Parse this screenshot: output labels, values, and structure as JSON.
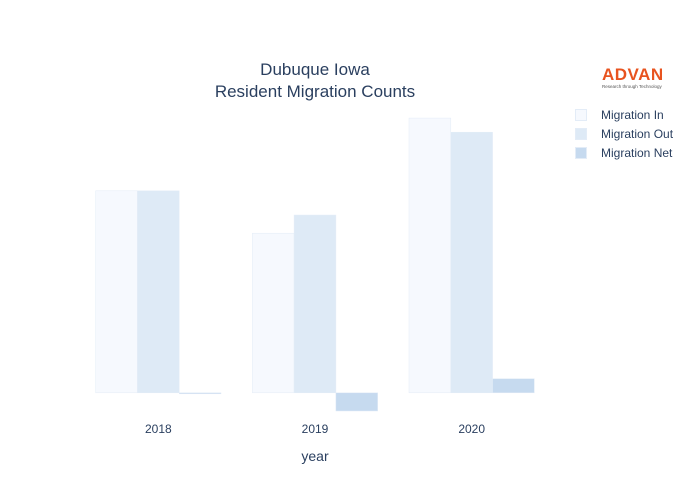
{
  "chart_data": {
    "type": "bar",
    "title": "Dubuque Iowa",
    "subtitle": "Resident Migration Counts",
    "xlabel": "year",
    "ylabel": "",
    "categories": [
      "2018",
      "2019",
      "2020"
    ],
    "series": [
      {
        "name": "Migration In",
        "values": [
          1000,
          790,
          1360
        ],
        "color": "#f6f9fe"
      },
      {
        "name": "Migration Out",
        "values": [
          1000,
          880,
          1290
        ],
        "color": "#deeaf6"
      },
      {
        "name": "Migration Net",
        "values": [
          0,
          -90,
          70
        ],
        "color": "#c6daef"
      }
    ],
    "ylim": [
      -100,
      1400
    ],
    "grid": false,
    "legend_position": "top-right"
  },
  "logo": {
    "word": "ADVAN",
    "tagline": "Research through Technology",
    "color": "#e8531f"
  }
}
